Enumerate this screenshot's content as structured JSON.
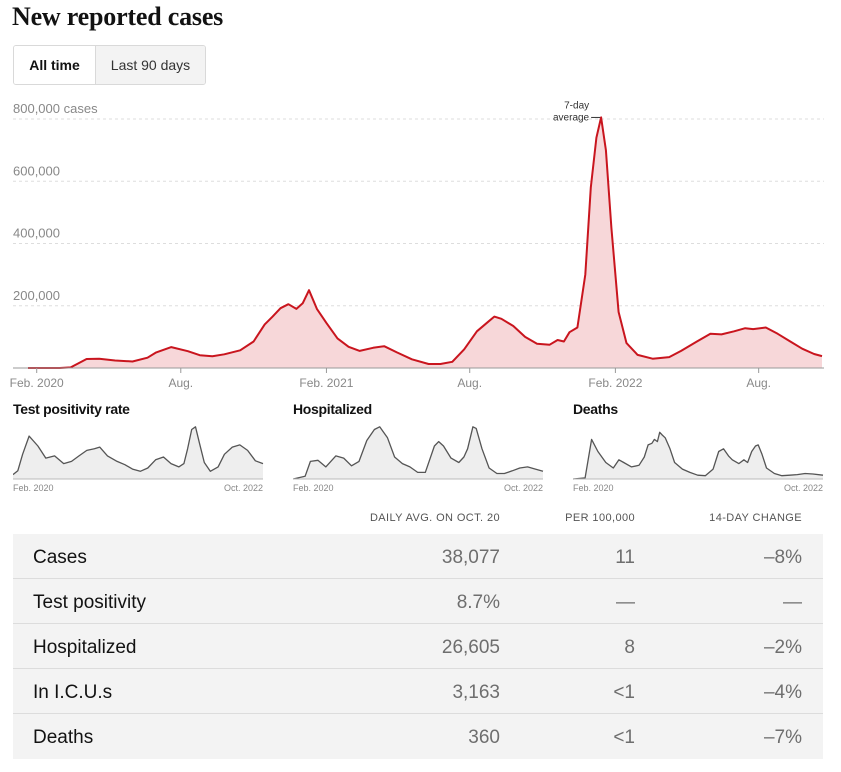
{
  "title": "New reported cases",
  "toggle": {
    "all_time": "All time",
    "last_90": "Last 90 days"
  },
  "colors": {
    "line": "#c9151e",
    "fill": "#f7d7d9",
    "mini_line": "#555555",
    "mini_fill": "#eeeeee",
    "grid": "#dddddd",
    "axis_text": "#888888"
  },
  "chart_data": [
    {
      "type": "area",
      "title": "New reported cases",
      "ylabel": "",
      "y_ticks": [
        {
          "value": 200000,
          "label": "200,000"
        },
        {
          "value": 400000,
          "label": "400,000"
        },
        {
          "value": 600000,
          "label": "600,000"
        },
        {
          "value": 800000,
          "label": "800,000 cases"
        }
      ],
      "x_ticks": [
        {
          "value": "2020-02-01",
          "label": "Feb. 2020"
        },
        {
          "value": "2020-08-01",
          "label": "Aug."
        },
        {
          "value": "2021-02-01",
          "label": "Feb. 2021"
        },
        {
          "value": "2021-08-01",
          "label": "Aug."
        },
        {
          "value": "2022-02-01",
          "label": "Feb. 2022"
        },
        {
          "value": "2022-08-01",
          "label": "Aug."
        }
      ],
      "ylim": [
        0,
        800000
      ],
      "xlim": [
        "2020-01-21",
        "2022-10-20"
      ],
      "annotation": {
        "text": [
          "7-day",
          "average"
        ],
        "x": "2022-01-14",
        "y": 805000
      },
      "series": [
        {
          "name": "7-day average",
          "x": [
            "2020-01-21",
            "2020-03-01",
            "2020-03-15",
            "2020-04-04",
            "2020-04-20",
            "2020-05-10",
            "2020-06-01",
            "2020-06-20",
            "2020-07-01",
            "2020-07-20",
            "2020-08-10",
            "2020-08-25",
            "2020-09-10",
            "2020-09-25",
            "2020-10-15",
            "2020-11-01",
            "2020-11-15",
            "2020-11-25",
            "2020-12-05",
            "2020-12-15",
            "2020-12-25",
            "2021-01-02",
            "2021-01-10",
            "2021-01-20",
            "2021-02-01",
            "2021-02-15",
            "2021-03-01",
            "2021-03-15",
            "2021-04-01",
            "2021-04-15",
            "2021-05-01",
            "2021-05-20",
            "2021-06-10",
            "2021-06-25",
            "2021-07-10",
            "2021-07-25",
            "2021-08-10",
            "2021-08-25",
            "2021-09-01",
            "2021-09-10",
            "2021-09-25",
            "2021-10-10",
            "2021-10-25",
            "2021-11-10",
            "2021-11-20",
            "2021-11-28",
            "2021-12-05",
            "2021-12-15",
            "2021-12-25",
            "2022-01-01",
            "2022-01-08",
            "2022-01-14",
            "2022-01-20",
            "2022-01-27",
            "2022-02-05",
            "2022-02-15",
            "2022-03-01",
            "2022-03-20",
            "2022-04-10",
            "2022-04-25",
            "2022-05-15",
            "2022-06-01",
            "2022-06-15",
            "2022-07-01",
            "2022-07-15",
            "2022-07-25",
            "2022-08-10",
            "2022-08-25",
            "2022-09-10",
            "2022-09-25",
            "2022-10-10",
            "2022-10-20"
          ],
          "values": [
            0,
            0,
            2000,
            29000,
            30000,
            24000,
            21000,
            33000,
            50000,
            67000,
            54000,
            41000,
            38000,
            44000,
            57000,
            85000,
            140000,
            165000,
            192000,
            205000,
            190000,
            208000,
            250000,
            190000,
            145000,
            95000,
            68000,
            55000,
            65000,
            70000,
            50000,
            28000,
            13000,
            13000,
            20000,
            60000,
            118000,
            150000,
            165000,
            158000,
            135000,
            100000,
            78000,
            75000,
            90000,
            85000,
            115000,
            130000,
            300000,
            580000,
            740000,
            805000,
            700000,
            450000,
            180000,
            80000,
            42000,
            30000,
            35000,
            55000,
            85000,
            110000,
            108000,
            118000,
            128000,
            125000,
            130000,
            110000,
            85000,
            62000,
            45000,
            38077
          ]
        }
      ]
    },
    {
      "type": "area",
      "title": "Test positivity rate",
      "x_ticks": [
        {
          "value": "2020-02-01",
          "label": "Feb. 2020"
        },
        {
          "value": "2022-10-01",
          "label": "Oct. 2022"
        }
      ],
      "xlim": [
        "2020-02-01",
        "2022-10-20"
      ],
      "ylim": [
        0,
        1
      ],
      "series": [
        {
          "x": [
            "2020-02-01",
            "2020-02-20",
            "2020-03-10",
            "2020-04-05",
            "2020-05-10",
            "2020-06-10",
            "2020-07-15",
            "2020-08-20",
            "2020-09-20",
            "2020-10-20",
            "2020-11-20",
            "2020-12-20",
            "2021-01-10",
            "2021-02-10",
            "2021-03-20",
            "2021-04-20",
            "2021-05-20",
            "2021-06-20",
            "2021-07-20",
            "2021-08-20",
            "2021-09-20",
            "2021-10-20",
            "2021-11-20",
            "2021-12-10",
            "2021-12-25",
            "2022-01-10",
            "2022-01-25",
            "2022-02-10",
            "2022-03-01",
            "2022-03-25",
            "2022-04-25",
            "2022-05-20",
            "2022-06-20",
            "2022-07-20",
            "2022-08-20",
            "2022-09-20",
            "2022-10-20"
          ],
          "values": [
            0.08,
            0.15,
            0.45,
            0.78,
            0.6,
            0.38,
            0.42,
            0.28,
            0.32,
            0.42,
            0.52,
            0.55,
            0.58,
            0.42,
            0.32,
            0.26,
            0.18,
            0.14,
            0.2,
            0.35,
            0.4,
            0.28,
            0.22,
            0.28,
            0.55,
            0.9,
            0.95,
            0.65,
            0.3,
            0.14,
            0.22,
            0.45,
            0.58,
            0.62,
            0.52,
            0.33,
            0.28
          ]
        }
      ]
    },
    {
      "type": "area",
      "title": "Hospitalized",
      "x_ticks": [
        {
          "value": "2020-02-01",
          "label": "Feb. 2020"
        },
        {
          "value": "2022-10-01",
          "label": "Oct. 2022"
        }
      ],
      "xlim": [
        "2020-02-01",
        "2022-10-20"
      ],
      "ylim": [
        0,
        1
      ],
      "series": [
        {
          "x": [
            "2020-02-01",
            "2020-03-20",
            "2020-04-10",
            "2020-05-10",
            "2020-06-10",
            "2020-07-20",
            "2020-08-20",
            "2020-09-20",
            "2020-10-20",
            "2020-11-20",
            "2020-12-20",
            "2021-01-10",
            "2021-02-10",
            "2021-03-10",
            "2021-04-10",
            "2021-05-10",
            "2021-06-10",
            "2021-07-10",
            "2021-08-15",
            "2021-09-01",
            "2021-09-20",
            "2021-10-20",
            "2021-11-20",
            "2021-12-10",
            "2021-12-25",
            "2022-01-15",
            "2022-01-28",
            "2022-02-20",
            "2022-03-20",
            "2022-04-20",
            "2022-05-20",
            "2022-06-20",
            "2022-07-20",
            "2022-08-20",
            "2022-09-20",
            "2022-10-20"
          ],
          "values": [
            0.0,
            0.05,
            0.32,
            0.34,
            0.22,
            0.42,
            0.38,
            0.24,
            0.32,
            0.7,
            0.9,
            0.95,
            0.75,
            0.4,
            0.28,
            0.22,
            0.12,
            0.12,
            0.6,
            0.68,
            0.6,
            0.38,
            0.3,
            0.4,
            0.55,
            0.95,
            0.92,
            0.55,
            0.2,
            0.1,
            0.1,
            0.15,
            0.2,
            0.22,
            0.18,
            0.14
          ]
        }
      ]
    },
    {
      "type": "area",
      "title": "Deaths",
      "x_ticks": [
        {
          "value": "2020-02-01",
          "label": "Feb. 2020"
        },
        {
          "value": "2022-10-01",
          "label": "Oct. 2022"
        }
      ],
      "xlim": [
        "2020-02-01",
        "2022-10-20"
      ],
      "ylim": [
        0,
        1
      ],
      "series": [
        {
          "x": [
            "2020-02-01",
            "2020-03-20",
            "2020-04-15",
            "2020-05-10",
            "2020-06-10",
            "2020-07-10",
            "2020-08-01",
            "2020-08-20",
            "2020-09-20",
            "2020-10-20",
            "2020-11-10",
            "2020-11-25",
            "2020-12-10",
            "2020-12-20",
            "2021-01-01",
            "2021-01-10",
            "2021-01-20",
            "2021-02-01",
            "2021-02-20",
            "2021-03-10",
            "2021-04-10",
            "2021-05-10",
            "2021-06-10",
            "2021-07-10",
            "2021-08-10",
            "2021-09-01",
            "2021-09-20",
            "2021-10-10",
            "2021-10-25",
            "2021-11-20",
            "2021-12-10",
            "2021-12-25",
            "2022-01-10",
            "2022-01-25",
            "2022-02-05",
            "2022-02-20",
            "2022-03-10",
            "2022-04-10",
            "2022-05-10",
            "2022-06-10",
            "2022-07-10",
            "2022-08-10",
            "2022-09-10",
            "2022-10-20"
          ],
          "values": [
            0.0,
            0.02,
            0.72,
            0.5,
            0.3,
            0.2,
            0.35,
            0.3,
            0.22,
            0.25,
            0.4,
            0.62,
            0.65,
            0.72,
            0.68,
            0.85,
            0.8,
            0.75,
            0.55,
            0.3,
            0.18,
            0.12,
            0.07,
            0.06,
            0.18,
            0.5,
            0.55,
            0.42,
            0.35,
            0.28,
            0.35,
            0.3,
            0.5,
            0.6,
            0.62,
            0.45,
            0.2,
            0.1,
            0.06,
            0.07,
            0.08,
            0.1,
            0.09,
            0.07
          ]
        }
      ]
    }
  ],
  "mini_titles": {
    "positivity": "Test positivity rate",
    "hospitalized": "Hospitalized",
    "deaths": "Deaths"
  },
  "table": {
    "headers": {
      "avg": "DAILY AVG. ON OCT. 20",
      "per": "PER 100,000",
      "chg": "14-DAY CHANGE"
    },
    "rows": [
      {
        "label": "Cases",
        "avg": "38,077",
        "per": "11",
        "chg": "–8%"
      },
      {
        "label": "Test positivity",
        "avg": "8.7%",
        "per": "—",
        "chg": "—"
      },
      {
        "label": "Hospitalized",
        "avg": "26,605",
        "per": "8",
        "chg": "–2%"
      },
      {
        "label": "In I.C.U.s",
        "avg": "3,163",
        "per": "<1",
        "chg": "–4%"
      },
      {
        "label": "Deaths",
        "avg": "360",
        "per": "<1",
        "chg": "–7%"
      }
    ]
  }
}
